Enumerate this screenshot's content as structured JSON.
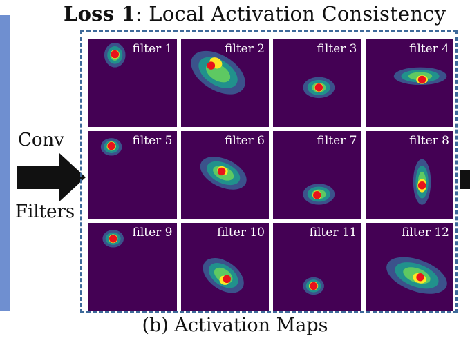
{
  "title": {
    "bold": "Loss 1",
    "rest": ": Local Activation Consistency"
  },
  "labels": {
    "conv": "Conv",
    "filters": "Filters"
  },
  "caption": "(b) Activation Maps",
  "colors": {
    "background": "#440154",
    "blob_outer": "#3b528b",
    "blob_mid": "#21918c",
    "blob_inner": "#5ec962",
    "blob_core": "#fde725",
    "peak_dot": "#e8131b",
    "frame": "#3e6a9a",
    "left_panel": "#6f8fd0"
  },
  "filters": [
    {
      "label": "filter 1"
    },
    {
      "label": "filter 2"
    },
    {
      "label": "filter 3"
    },
    {
      "label": "filter 4"
    },
    {
      "label": "filter 5"
    },
    {
      "label": "filter 6"
    },
    {
      "label": "filter 7"
    },
    {
      "label": "filter 8"
    },
    {
      "label": "filter 9"
    },
    {
      "label": "filter 10"
    },
    {
      "label": "filter 11"
    },
    {
      "label": "filter 12"
    }
  ]
}
